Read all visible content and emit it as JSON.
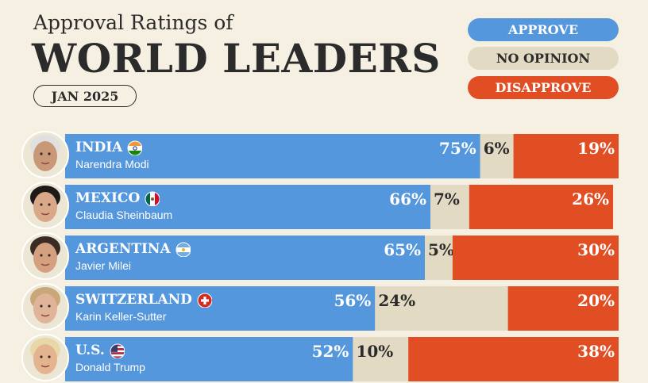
{
  "header": {
    "subtitle": "Approval Ratings of",
    "title": "WORLD LEADERS",
    "date": "JAN 2025"
  },
  "legend": [
    {
      "label": "APPROVE",
      "color": "#5497dc",
      "text_color": "#ffffff"
    },
    {
      "label": "NO OPINION",
      "color": "#e2dac3",
      "text_color": "#2b2b2b"
    },
    {
      "label": "DISAPPROVE",
      "color": "#e24e24",
      "text_color": "#ffffff"
    }
  ],
  "colors": {
    "approve": "#5497dc",
    "no_opinion": "#e2dac3",
    "disapprove": "#e24e24",
    "background": "#f5f0e1"
  },
  "rows": [
    {
      "country": "INDIA",
      "leader": "Narendra Modi",
      "flag_icon": "india-flag-icon"
    },
    {
      "country": "MEXICO",
      "leader": "Claudia Sheinbaum",
      "flag_icon": "mexico-flag-icon"
    },
    {
      "country": "ARGENTINA",
      "leader": "Javier Milei",
      "flag_icon": "argentina-flag-icon"
    },
    {
      "country": "SWITZERLAND",
      "leader": "Karin Keller-Sutter",
      "flag_icon": "switzerland-flag-icon"
    },
    {
      "country": "U.S.",
      "leader": "Donald Trump",
      "flag_icon": "us-flag-icon"
    }
  ],
  "chart_data": {
    "type": "bar",
    "orientation": "horizontal",
    "stacked": true,
    "title": "WORLD LEADERS",
    "subtitle": "Approval Ratings of",
    "categories": [
      "INDIA",
      "MEXICO",
      "ARGENTINA",
      "SWITZERLAND",
      "U.S."
    ],
    "series": [
      {
        "name": "APPROVE",
        "values": [
          75,
          66,
          65,
          56,
          52
        ],
        "labels": [
          "75%",
          "66%",
          "65%",
          "56%",
          "52%"
        ]
      },
      {
        "name": "NO OPINION",
        "values": [
          6,
          7,
          5,
          24,
          10
        ],
        "labels": [
          "6%",
          "7%",
          "5%",
          "24%",
          "10%"
        ]
      },
      {
        "name": "DISAPPROVE",
        "values": [
          19,
          26,
          30,
          20,
          38
        ],
        "labels": [
          "19%",
          "26%",
          "30%",
          "20%",
          "38%"
        ]
      }
    ],
    "xlim": [
      0,
      100
    ],
    "legend_position": "top-right",
    "grid": false
  }
}
